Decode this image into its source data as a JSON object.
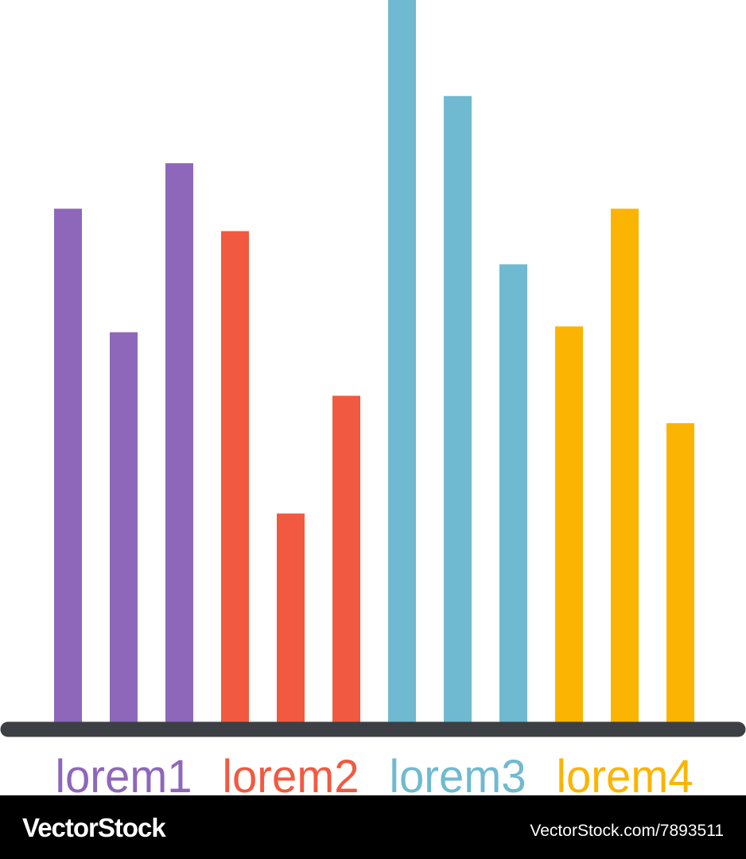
{
  "chart_data": {
    "type": "bar",
    "series": [
      {
        "name": "lorem1",
        "color": "#8e67ba",
        "values": [
          71.1,
          54.0,
          77.4
        ]
      },
      {
        "name": "lorem2",
        "color": "#f15a40",
        "values": [
          68.0,
          28.9,
          45.2
        ]
      },
      {
        "name": "lorem3",
        "color": "#6fbad1",
        "values": [
          100,
          86.7,
          63.4
        ]
      },
      {
        "name": "lorem4",
        "color": "#fbb401",
        "values": [
          54.8,
          71.1,
          41.4
        ]
      }
    ],
    "ylim": [
      0,
      100
    ]
  },
  "watermark": {
    "left": "VectorStock",
    "right": "VectorStock.com/7893511"
  }
}
